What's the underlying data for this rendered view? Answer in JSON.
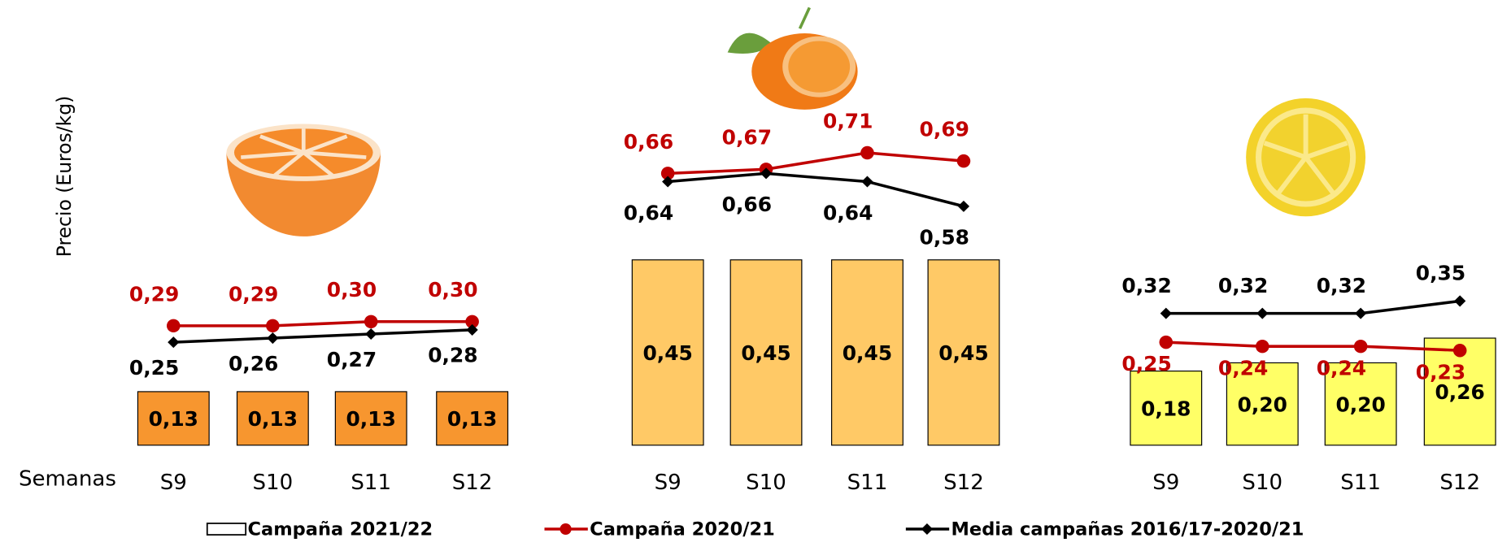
{
  "chart_data": {
    "type": "combo",
    "ylabel": "Precio (Euros/kg)",
    "xlabel": "Semanas",
    "ylim": [
      0,
      1
    ],
    "series": [
      {
        "name": "Campaña 2021/22",
        "kind": "bar",
        "color": "#ffffff"
      },
      {
        "name": "Campaña 2020/21",
        "kind": "line",
        "color": "#c00000"
      },
      {
        "name": "Media campañas 2016/17-2020/21",
        "kind": "line",
        "color": "#000000"
      }
    ],
    "panels": [
      {
        "categories": [
          "S9",
          "S10",
          "S11",
          "S12"
        ],
        "bar_color": "#f7962f",
        "series": [
          {
            "values": [
              0.13,
              0.13,
              0.13,
              0.13
            ],
            "value_labels": [
              "0,13",
              "0,13",
              "0,13",
              "0,13"
            ]
          },
          {
            "values": [
              0.29,
              0.29,
              0.3,
              0.3
            ],
            "value_labels": [
              "0,29",
              "0,29",
              "0,30",
              "0,30"
            ]
          },
          {
            "values": [
              0.25,
              0.26,
              0.27,
              0.28
            ],
            "value_labels": [
              "0,25",
              "0,26",
              "0,27",
              "0,28"
            ]
          }
        ]
      },
      {
        "categories": [
          "S9",
          "S10",
          "S11",
          "S12"
        ],
        "bar_color": "#ffc966",
        "series": [
          {
            "values": [
              0.45,
              0.45,
              0.45,
              0.45
            ],
            "value_labels": [
              "0,45",
              "0,45",
              "0,45",
              "0,45"
            ]
          },
          {
            "values": [
              0.66,
              0.67,
              0.71,
              0.69
            ],
            "value_labels": [
              "0,66",
              "0,67",
              "0,71",
              "0,69"
            ]
          },
          {
            "values": [
              0.64,
              0.66,
              0.64,
              0.58
            ],
            "value_labels": [
              "0,64",
              "0,66",
              "0,64",
              "0,58"
            ]
          }
        ]
      },
      {
        "categories": [
          "S9",
          "S10",
          "S11",
          "S12"
        ],
        "bar_color": "#ffff66",
        "series": [
          {
            "values": [
              0.18,
              0.2,
              0.2,
              0.26
            ],
            "value_labels": [
              "0,18",
              "0,20",
              "0,20",
              "0,26"
            ]
          },
          {
            "values": [
              0.25,
              0.24,
              0.24,
              0.23
            ],
            "value_labels": [
              "0,25",
              "0,24",
              "0,24",
              "0,23"
            ]
          },
          {
            "values": [
              0.32,
              0.32,
              0.32,
              0.35
            ],
            "value_labels": [
              "0,32",
              "0,32",
              "0,32",
              "0,35"
            ]
          }
        ]
      }
    ]
  }
}
